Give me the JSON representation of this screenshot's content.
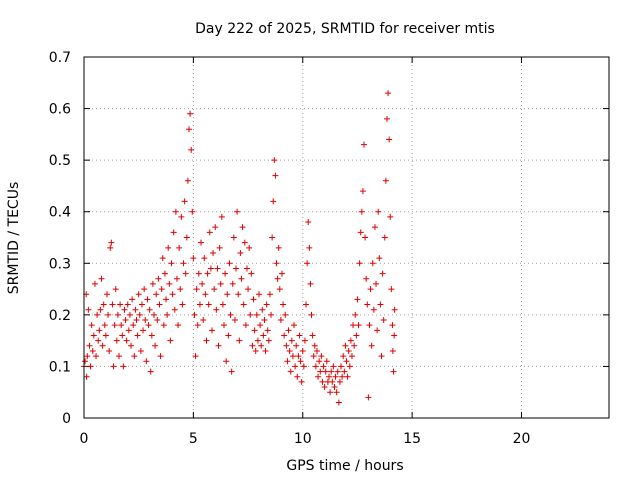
{
  "chart_data": {
    "type": "scatter",
    "title": "Day 222 of 2025, SRMTID for receiver mtis",
    "xlabel": "GPS time / hours",
    "ylabel": "SRMTID / TECUs",
    "xlim": [
      0,
      24
    ],
    "ylim": [
      0,
      0.7
    ],
    "xticks": [
      0,
      5,
      10,
      15,
      20
    ],
    "yticks": [
      0,
      0.1,
      0.2,
      0.3,
      0.4,
      0.5,
      0.6,
      0.7
    ],
    "xtick_labels": [
      "0",
      "5",
      "10",
      "15",
      "20"
    ],
    "ytick_labels": [
      "0",
      "0.1",
      "0.2",
      "0.3",
      "0.4",
      "0.5",
      "0.6",
      "0.7"
    ],
    "grid": true,
    "marker": "+",
    "marker_color": "#e00000",
    "series": [
      {
        "name": "SRMTID",
        "points": [
          [
            0.0,
            0.1
          ],
          [
            0.05,
            0.11
          ],
          [
            0.1,
            0.24
          ],
          [
            0.12,
            0.08
          ],
          [
            0.15,
            0.12
          ],
          [
            0.2,
            0.21
          ],
          [
            0.25,
            0.14
          ],
          [
            0.3,
            0.1
          ],
          [
            0.35,
            0.18
          ],
          [
            0.4,
            0.13
          ],
          [
            0.45,
            0.16
          ],
          [
            0.5,
            0.26
          ],
          [
            0.55,
            0.12
          ],
          [
            0.6,
            0.2
          ],
          [
            0.65,
            0.15
          ],
          [
            0.7,
            0.17
          ],
          [
            0.75,
            0.21
          ],
          [
            0.8,
            0.27
          ],
          [
            0.85,
            0.14
          ],
          [
            0.9,
            0.22
          ],
          [
            0.95,
            0.18
          ],
          [
            1.0,
            0.16
          ],
          [
            1.05,
            0.24
          ],
          [
            1.1,
            0.2
          ],
          [
            1.15,
            0.13
          ],
          [
            1.2,
            0.33
          ],
          [
            1.25,
            0.34
          ],
          [
            1.3,
            0.22
          ],
          [
            1.35,
            0.1
          ],
          [
            1.4,
            0.18
          ],
          [
            1.45,
            0.25
          ],
          [
            1.5,
            0.15
          ],
          [
            1.55,
            0.2
          ],
          [
            1.6,
            0.12
          ],
          [
            1.65,
            0.22
          ],
          [
            1.7,
            0.18
          ],
          [
            1.75,
            0.16
          ],
          [
            1.8,
            0.1
          ],
          [
            1.85,
            0.21
          ],
          [
            1.9,
            0.19
          ],
          [
            1.95,
            0.15
          ],
          [
            2.0,
            0.22
          ],
          [
            2.05,
            0.17
          ],
          [
            2.1,
            0.2
          ],
          [
            2.15,
            0.14
          ],
          [
            2.2,
            0.23
          ],
          [
            2.25,
            0.18
          ],
          [
            2.3,
            0.12
          ],
          [
            2.35,
            0.21
          ],
          [
            2.4,
            0.19
          ],
          [
            2.45,
            0.16
          ],
          [
            2.5,
            0.24
          ],
          [
            2.55,
            0.2
          ],
          [
            2.6,
            0.13
          ],
          [
            2.65,
            0.22
          ],
          [
            2.7,
            0.17
          ],
          [
            2.75,
            0.25
          ],
          [
            2.8,
            0.19
          ],
          [
            2.85,
            0.11
          ],
          [
            2.9,
            0.23
          ],
          [
            2.95,
            0.18
          ],
          [
            3.0,
            0.21
          ],
          [
            3.05,
            0.09
          ],
          [
            3.1,
            0.16
          ],
          [
            3.15,
            0.26
          ],
          [
            3.2,
            0.2
          ],
          [
            3.25,
            0.14
          ],
          [
            3.3,
            0.24
          ],
          [
            3.35,
            0.19
          ],
          [
            3.4,
            0.27
          ],
          [
            3.45,
            0.22
          ],
          [
            3.5,
            0.12
          ],
          [
            3.55,
            0.25
          ],
          [
            3.6,
            0.31
          ],
          [
            3.65,
            0.18
          ],
          [
            3.7,
            0.28
          ],
          [
            3.75,
            0.23
          ],
          [
            3.8,
            0.2
          ],
          [
            3.85,
            0.33
          ],
          [
            3.9,
            0.26
          ],
          [
            3.95,
            0.15
          ],
          [
            4.0,
            0.3
          ],
          [
            4.05,
            0.24
          ],
          [
            4.1,
            0.36
          ],
          [
            4.15,
            0.21
          ],
          [
            4.2,
            0.4
          ],
          [
            4.25,
            0.27
          ],
          [
            4.3,
            0.18
          ],
          [
            4.35,
            0.33
          ],
          [
            4.4,
            0.25
          ],
          [
            4.45,
            0.39
          ],
          [
            4.5,
            0.22
          ],
          [
            4.55,
            0.3
          ],
          [
            4.6,
            0.42
          ],
          [
            4.65,
            0.28
          ],
          [
            4.7,
            0.35
          ],
          [
            4.75,
            0.46
          ],
          [
            4.8,
            0.56
          ],
          [
            4.85,
            0.59
          ],
          [
            4.9,
            0.52
          ],
          [
            4.95,
            0.4
          ],
          [
            5.0,
            0.31
          ],
          [
            5.05,
            0.2
          ],
          [
            5.1,
            0.12
          ],
          [
            5.15,
            0.25
          ],
          [
            5.2,
            0.18
          ],
          [
            5.25,
            0.28
          ],
          [
            5.3,
            0.22
          ],
          [
            5.35,
            0.34
          ],
          [
            5.4,
            0.26
          ],
          [
            5.45,
            0.19
          ],
          [
            5.5,
            0.31
          ],
          [
            5.55,
            0.24
          ],
          [
            5.6,
            0.15
          ],
          [
            5.65,
            0.28
          ],
          [
            5.7,
            0.22
          ],
          [
            5.75,
            0.36
          ],
          [
            5.8,
            0.29
          ],
          [
            5.85,
            0.17
          ],
          [
            5.9,
            0.32
          ],
          [
            5.95,
            0.25
          ],
          [
            6.0,
            0.37
          ],
          [
            6.05,
            0.21
          ],
          [
            6.1,
            0.29
          ],
          [
            6.15,
            0.14
          ],
          [
            6.2,
            0.33
          ],
          [
            6.25,
            0.26
          ],
          [
            6.3,
            0.39
          ],
          [
            6.35,
            0.22
          ],
          [
            6.4,
            0.18
          ],
          [
            6.45,
            0.28
          ],
          [
            6.5,
            0.11
          ],
          [
            6.55,
            0.24
          ],
          [
            6.6,
            0.16
          ],
          [
            6.65,
            0.3
          ],
          [
            6.7,
            0.2
          ],
          [
            6.75,
            0.09
          ],
          [
            6.8,
            0.26
          ],
          [
            6.85,
            0.35
          ],
          [
            6.9,
            0.19
          ],
          [
            6.95,
            0.29
          ],
          [
            7.0,
            0.4
          ],
          [
            7.05,
            0.24
          ],
          [
            7.1,
            0.15
          ],
          [
            7.15,
            0.32
          ],
          [
            7.2,
            0.27
          ],
          [
            7.25,
            0.37
          ],
          [
            7.3,
            0.22
          ],
          [
            7.35,
            0.34
          ],
          [
            7.4,
            0.18
          ],
          [
            7.45,
            0.29
          ],
          [
            7.5,
            0.25
          ],
          [
            7.55,
            0.33
          ],
          [
            7.6,
            0.2
          ],
          [
            7.65,
            0.28
          ],
          [
            7.7,
            0.14
          ],
          [
            7.75,
            0.23
          ],
          [
            7.8,
            0.17
          ],
          [
            7.85,
            0.13
          ],
          [
            7.9,
            0.2
          ],
          [
            7.95,
            0.15
          ],
          [
            8.0,
            0.24
          ],
          [
            8.05,
            0.18
          ],
          [
            8.1,
            0.14
          ],
          [
            8.15,
            0.21
          ],
          [
            8.2,
            0.16
          ],
          [
            8.25,
            0.19
          ],
          [
            8.3,
            0.13
          ],
          [
            8.35,
            0.22
          ],
          [
            8.4,
            0.17
          ],
          [
            8.45,
            0.15
          ],
          [
            8.5,
            0.24
          ],
          [
            8.55,
            0.2
          ],
          [
            8.6,
            0.35
          ],
          [
            8.65,
            0.42
          ],
          [
            8.7,
            0.5
          ],
          [
            8.75,
            0.47
          ],
          [
            8.8,
            0.3
          ],
          [
            8.85,
            0.27
          ],
          [
            8.9,
            0.33
          ],
          [
            8.95,
            0.25
          ],
          [
            9.0,
            0.19
          ],
          [
            9.05,
            0.28
          ],
          [
            9.1,
            0.22
          ],
          [
            9.15,
            0.16
          ],
          [
            9.2,
            0.2
          ],
          [
            9.25,
            0.14
          ],
          [
            9.3,
            0.11
          ],
          [
            9.35,
            0.17
          ],
          [
            9.4,
            0.13
          ],
          [
            9.45,
            0.09
          ],
          [
            9.5,
            0.15
          ],
          [
            9.55,
            0.12
          ],
          [
            9.6,
            0.18
          ],
          [
            9.65,
            0.1
          ],
          [
            9.7,
            0.14
          ],
          [
            9.75,
            0.08
          ],
          [
            9.8,
            0.12
          ],
          [
            9.85,
            0.16
          ],
          [
            9.9,
            0.11
          ],
          [
            9.95,
            0.07
          ],
          [
            10.0,
            0.13
          ],
          [
            10.05,
            0.1
          ],
          [
            10.1,
            0.15
          ],
          [
            10.15,
            0.22
          ],
          [
            10.2,
            0.3
          ],
          [
            10.25,
            0.38
          ],
          [
            10.3,
            0.33
          ],
          [
            10.35,
            0.26
          ],
          [
            10.4,
            0.2
          ],
          [
            10.45,
            0.16
          ],
          [
            10.5,
            0.12
          ],
          [
            10.55,
            0.14
          ],
          [
            10.6,
            0.1
          ],
          [
            10.65,
            0.13
          ],
          [
            10.7,
            0.08
          ],
          [
            10.75,
            0.11
          ],
          [
            10.8,
            0.09
          ],
          [
            10.85,
            0.12
          ],
          [
            10.9,
            0.07
          ],
          [
            10.95,
            0.1
          ],
          [
            11.0,
            0.06
          ],
          [
            11.05,
            0.09
          ],
          [
            11.1,
            0.11
          ],
          [
            11.15,
            0.07
          ],
          [
            11.2,
            0.08
          ],
          [
            11.25,
            0.05
          ],
          [
            11.3,
            0.09
          ],
          [
            11.35,
            0.07
          ],
          [
            11.4,
            0.1
          ],
          [
            11.45,
            0.06
          ],
          [
            11.5,
            0.08
          ],
          [
            11.55,
            0.05
          ],
          [
            11.6,
            0.09
          ],
          [
            11.65,
            0.03
          ],
          [
            11.7,
            0.07
          ],
          [
            11.75,
            0.1
          ],
          [
            11.8,
            0.08
          ],
          [
            11.85,
            0.12
          ],
          [
            11.9,
            0.09
          ],
          [
            11.95,
            0.14
          ],
          [
            12.0,
            0.11
          ],
          [
            12.05,
            0.08
          ],
          [
            12.1,
            0.13
          ],
          [
            12.15,
            0.1
          ],
          [
            12.2,
            0.15
          ],
          [
            12.25,
            0.12
          ],
          [
            12.3,
            0.18
          ],
          [
            12.35,
            0.14
          ],
          [
            12.4,
            0.2
          ],
          [
            12.45,
            0.16
          ],
          [
            12.5,
            0.23
          ],
          [
            12.55,
            0.18
          ],
          [
            12.6,
            0.3
          ],
          [
            12.65,
            0.36
          ],
          [
            12.7,
            0.4
          ],
          [
            12.75,
            0.44
          ],
          [
            12.8,
            0.53
          ],
          [
            12.85,
            0.35
          ],
          [
            12.9,
            0.27
          ],
          [
            12.95,
            0.22
          ],
          [
            13.0,
            0.04
          ],
          [
            13.05,
            0.18
          ],
          [
            13.1,
            0.25
          ],
          [
            13.15,
            0.14
          ],
          [
            13.2,
            0.3
          ],
          [
            13.25,
            0.21
          ],
          [
            13.3,
            0.37
          ],
          [
            13.35,
            0.26
          ],
          [
            13.4,
            0.17
          ],
          [
            13.45,
            0.4
          ],
          [
            13.5,
            0.31
          ],
          [
            13.55,
            0.22
          ],
          [
            13.6,
            0.12
          ],
          [
            13.65,
            0.28
          ],
          [
            13.7,
            0.19
          ],
          [
            13.75,
            0.35
          ],
          [
            13.8,
            0.46
          ],
          [
            13.85,
            0.58
          ],
          [
            13.9,
            0.63
          ],
          [
            13.95,
            0.54
          ],
          [
            14.0,
            0.39
          ],
          [
            14.05,
            0.25
          ],
          [
            14.1,
            0.18
          ],
          [
            14.12,
            0.13
          ],
          [
            14.15,
            0.09
          ],
          [
            14.18,
            0.16
          ],
          [
            14.2,
            0.21
          ]
        ]
      }
    ]
  }
}
